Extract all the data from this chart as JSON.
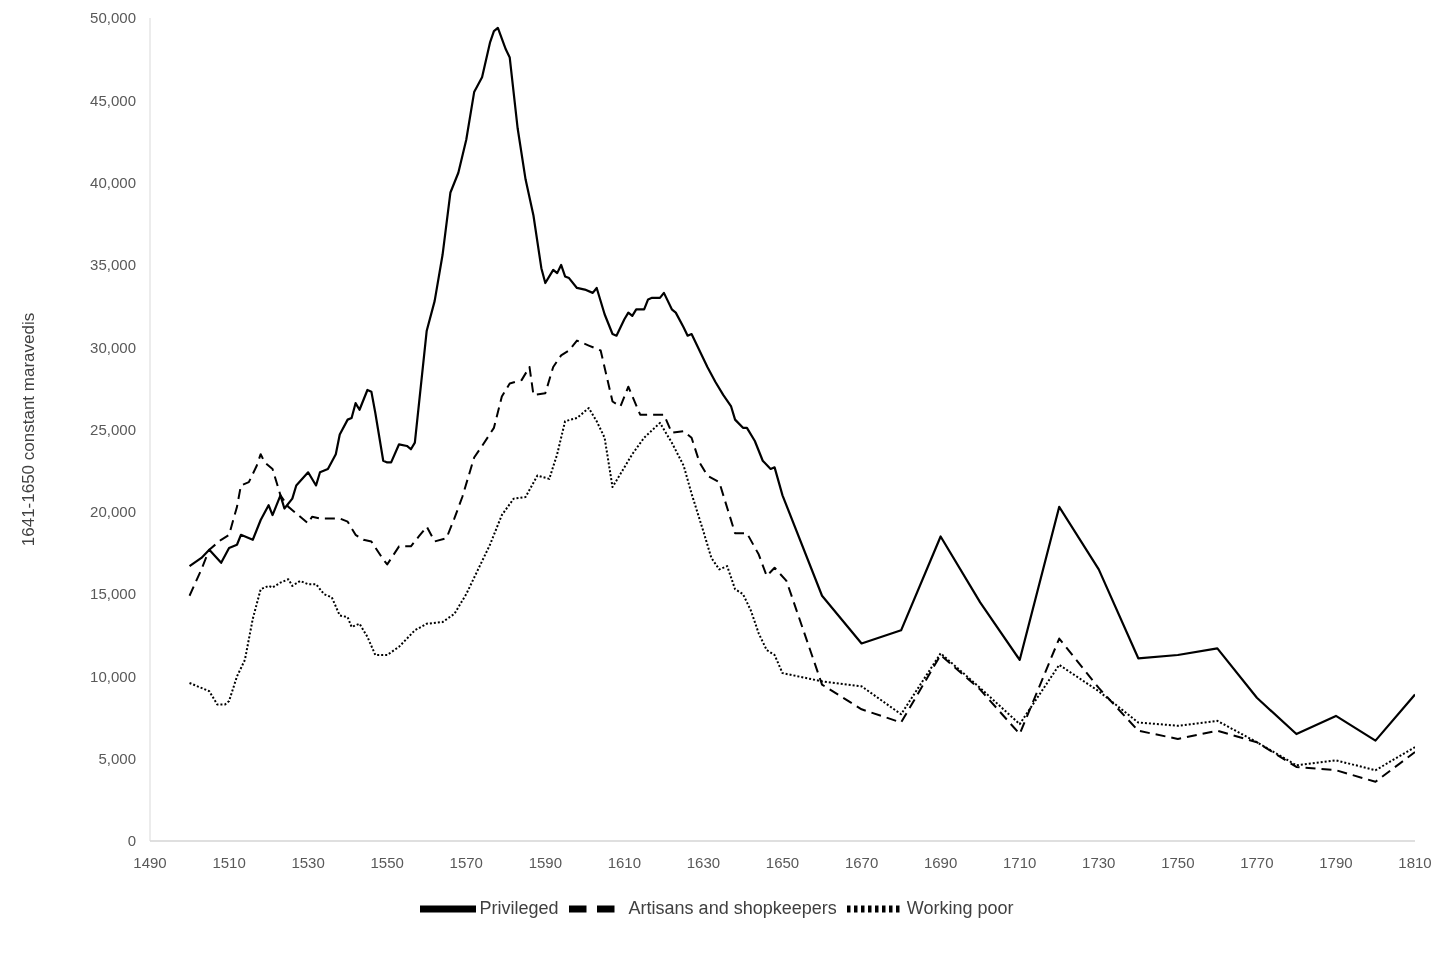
{
  "chart_data": {
    "type": "line",
    "ylabel": "1641-1650 constant maravedis",
    "xlim": [
      1490,
      1810
    ],
    "xticks": [
      1490,
      1510,
      1530,
      1550,
      1570,
      1590,
      1610,
      1630,
      1650,
      1670,
      1690,
      1710,
      1730,
      1750,
      1770,
      1790,
      1810
    ],
    "ylim": [
      0,
      50000
    ],
    "yticks": [
      {
        "value": 0,
        "label": "0"
      },
      {
        "value": 5000,
        "label": "5,000"
      },
      {
        "value": 10000,
        "label": "10,000"
      },
      {
        "value": 15000,
        "label": "15,000"
      },
      {
        "value": 20000,
        "label": "20,000"
      },
      {
        "value": 25000,
        "label": "25,000"
      },
      {
        "value": 30000,
        "label": "30,000"
      },
      {
        "value": 35000,
        "label": "35,000"
      },
      {
        "value": 40000,
        "label": "40,000"
      },
      {
        "value": 45000,
        "label": "45,000"
      },
      {
        "value": 50000,
        "label": "50,000"
      }
    ],
    "grid": false,
    "legend": "bottom",
    "marker": "none",
    "series": [
      {
        "name": "Privileged",
        "color": "#000000",
        "line_style": "solid",
        "x": [
          1500,
          1503,
          1505,
          1508,
          1510,
          1512,
          1513,
          1516,
          1518,
          1520,
          1521,
          1523,
          1524,
          1526,
          1527,
          1530,
          1532,
          1533,
          1535,
          1537,
          1538,
          1540,
          1541,
          1542,
          1543,
          1545,
          1546,
          1547,
          1549,
          1550,
          1551,
          1553,
          1555,
          1556,
          1557,
          1560,
          1562,
          1564,
          1566,
          1568,
          1570,
          1572,
          1574,
          1576,
          1577,
          1578,
          1580,
          1581,
          1583,
          1585,
          1587,
          1589,
          1590,
          1592,
          1593,
          1594,
          1595,
          1596,
          1598,
          1600,
          1602,
          1603,
          1605,
          1607,
          1608,
          1610,
          1611,
          1612,
          1613,
          1615,
          1616,
          1617,
          1619,
          1620,
          1622,
          1623,
          1625,
          1626,
          1627,
          1629,
          1631,
          1633,
          1635,
          1637,
          1638,
          1640,
          1641,
          1643,
          1645,
          1647,
          1648,
          1650,
          1660,
          1670,
          1680,
          1690,
          1700,
          1710,
          1720,
          1730,
          1740,
          1750,
          1760,
          1770,
          1780,
          1790,
          1800,
          1810
        ],
        "values": [
          16700,
          17200,
          17700,
          16900,
          17800,
          18000,
          18600,
          18300,
          19500,
          20400,
          19800,
          21000,
          20200,
          20800,
          21600,
          22400,
          21600,
          22400,
          22600,
          23500,
          24700,
          25600,
          25700,
          26600,
          26200,
          27400,
          27300,
          26000,
          23100,
          23000,
          23000,
          24100,
          24000,
          23800,
          24200,
          31000,
          32800,
          35600,
          39400,
          40600,
          42600,
          45500,
          46400,
          48500,
          49200,
          49400,
          48100,
          47600,
          43300,
          40200,
          38000,
          34800,
          33900,
          34700,
          34500,
          35000,
          34300,
          34200,
          33600,
          33500,
          33300,
          33600,
          32000,
          30800,
          30700,
          31700,
          32100,
          31900,
          32300,
          32300,
          32900,
          33000,
          33000,
          33300,
          32300,
          32100,
          31200,
          30700,
          30800,
          29800,
          28800,
          27900,
          27100,
          26400,
          25600,
          25100,
          25100,
          24300,
          23100,
          22600,
          22700,
          21000,
          14900,
          12000,
          12800,
          18500,
          14500,
          11000,
          20300,
          16500,
          11100,
          11300,
          11700,
          8700,
          6500,
          7600,
          6100,
          8900
        ]
      },
      {
        "name": "Artisans and shopkeepers",
        "color": "#000000",
        "line_style": "dashed",
        "x": [
          1500,
          1503,
          1505,
          1508,
          1510,
          1512,
          1513,
          1515,
          1517,
          1518,
          1519,
          1521,
          1523,
          1525,
          1527,
          1530,
          1531,
          1533,
          1536,
          1538,
          1540,
          1542,
          1544,
          1546,
          1549,
          1550,
          1553,
          1556,
          1558,
          1560,
          1562,
          1565,
          1567,
          1569,
          1572,
          1574,
          1577,
          1579,
          1581,
          1584,
          1586,
          1587,
          1590,
          1592,
          1594,
          1596,
          1598,
          1601,
          1604,
          1607,
          1609,
          1611,
          1614,
          1618,
          1620,
          1622,
          1625,
          1627,
          1629,
          1631,
          1634,
          1638,
          1641,
          1644,
          1646,
          1648,
          1651,
          1660,
          1670,
          1680,
          1690,
          1700,
          1710,
          1720,
          1730,
          1740,
          1750,
          1760,
          1770,
          1780,
          1790,
          1800,
          1810
        ],
        "values": [
          14900,
          16500,
          17700,
          18300,
          18600,
          20300,
          21600,
          21800,
          22800,
          23500,
          23000,
          22600,
          21000,
          20300,
          19900,
          19300,
          19700,
          19600,
          19600,
          19600,
          19400,
          18600,
          18300,
          18200,
          17100,
          16800,
          17900,
          17900,
          18500,
          19100,
          18200,
          18400,
          19600,
          20900,
          23300,
          24000,
          25100,
          27000,
          27800,
          28000,
          28800,
          27100,
          27200,
          28800,
          29500,
          29800,
          30400,
          30100,
          29800,
          26700,
          26400,
          27600,
          25900,
          25900,
          25900,
          24800,
          24900,
          24500,
          23000,
          22200,
          21800,
          18700,
          18700,
          17400,
          16100,
          16600,
          15800,
          9500,
          8000,
          7200,
          11300,
          9200,
          6500,
          12300,
          9300,
          6700,
          6200,
          6700,
          6000,
          4500,
          4300,
          3600,
          5400
        ]
      },
      {
        "name": "Working poor",
        "color": "#000000",
        "line_style": "dotted",
        "x": [
          1500,
          1503,
          1505,
          1507,
          1509,
          1510,
          1512,
          1514,
          1516,
          1518,
          1520,
          1521,
          1523,
          1525,
          1526,
          1528,
          1530,
          1532,
          1534,
          1536,
          1538,
          1540,
          1541,
          1543,
          1545,
          1547,
          1550,
          1553,
          1557,
          1560,
          1564,
          1567,
          1570,
          1573,
          1576,
          1579,
          1582,
          1585,
          1588,
          1591,
          1593,
          1595,
          1598,
          1601,
          1603,
          1605,
          1607,
          1609,
          1612,
          1615,
          1619,
          1622,
          1625,
          1627,
          1630,
          1632,
          1634,
          1636,
          1638,
          1640,
          1642,
          1644,
          1646,
          1648,
          1650,
          1660,
          1670,
          1680,
          1690,
          1700,
          1710,
          1720,
          1730,
          1740,
          1750,
          1760,
          1770,
          1780,
          1790,
          1800,
          1810
        ],
        "values": [
          9600,
          9300,
          9100,
          8300,
          8300,
          8500,
          10000,
          11000,
          13500,
          15300,
          15500,
          15400,
          15700,
          15900,
          15500,
          15800,
          15600,
          15600,
          15000,
          14800,
          13700,
          13600,
          13000,
          13200,
          12400,
          11300,
          11300,
          11800,
          12800,
          13200,
          13300,
          13800,
          15000,
          16500,
          18000,
          19800,
          20800,
          20900,
          22200,
          22000,
          23500,
          25500,
          25700,
          26300,
          25500,
          24500,
          21500,
          22300,
          23500,
          24500,
          25400,
          24200,
          22800,
          21100,
          18800,
          17200,
          16500,
          16700,
          15300,
          15000,
          14000,
          12600,
          11600,
          11300,
          10200,
          9700,
          9400,
          7700,
          11400,
          9300,
          7100,
          10700,
          9100,
          7200,
          7000,
          7300,
          6000,
          4600,
          4900,
          4300,
          5700
        ]
      }
    ]
  }
}
